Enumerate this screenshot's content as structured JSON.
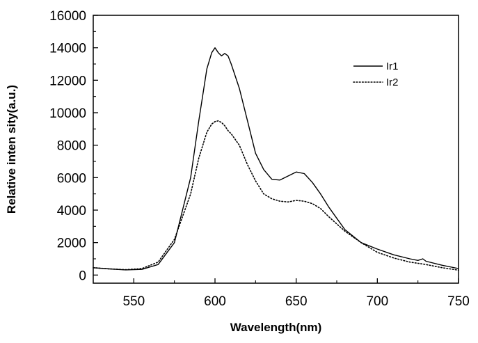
{
  "chart_data": {
    "type": "line",
    "title": "",
    "xlabel": "Wavelength(nm)",
    "ylabel": "Relative inten sity(a.u.)",
    "xlim": [
      525,
      750
    ],
    "ylim": [
      -500,
      16000
    ],
    "xticks": [
      550,
      600,
      650,
      700,
      750
    ],
    "yticks": [
      0,
      2000,
      4000,
      6000,
      8000,
      10000,
      12000,
      14000,
      16000
    ],
    "legend_position": "top-right",
    "grid": false,
    "series": [
      {
        "name": "Ir1",
        "style": "solid",
        "color": "#000000",
        "x": [
          525,
          535,
          545,
          555,
          565,
          575,
          585,
          590,
          595,
          598,
          600,
          602,
          604,
          606,
          608,
          610,
          615,
          620,
          625,
          630,
          635,
          640,
          645,
          650,
          655,
          660,
          665,
          670,
          675,
          680,
          690,
          700,
          710,
          720,
          725,
          728,
          730,
          740,
          750
        ],
        "y": [
          450,
          380,
          320,
          350,
          650,
          2000,
          6000,
          9500,
          12700,
          13700,
          14000,
          13700,
          13500,
          13650,
          13500,
          13000,
          11500,
          9500,
          7500,
          6500,
          5900,
          5850,
          6100,
          6350,
          6250,
          5700,
          5000,
          4200,
          3500,
          2800,
          2000,
          1600,
          1250,
          1000,
          900,
          1000,
          850,
          600,
          400
        ]
      },
      {
        "name": "Ir2",
        "style": "dotted",
        "color": "#000000",
        "x": [
          525,
          535,
          545,
          555,
          565,
          575,
          585,
          590,
          595,
          598,
          600,
          602,
          604,
          606,
          608,
          610,
          615,
          620,
          625,
          630,
          635,
          640,
          645,
          650,
          655,
          660,
          665,
          670,
          680,
          690,
          700,
          710,
          720,
          730,
          740,
          750
        ],
        "y": [
          450,
          380,
          330,
          400,
          800,
          2200,
          5000,
          7200,
          8800,
          9300,
          9450,
          9500,
          9400,
          9200,
          8900,
          8700,
          8000,
          6800,
          5800,
          5000,
          4700,
          4550,
          4500,
          4600,
          4550,
          4400,
          4100,
          3600,
          2700,
          2000,
          1400,
          1050,
          800,
          650,
          450,
          300
        ]
      }
    ]
  }
}
